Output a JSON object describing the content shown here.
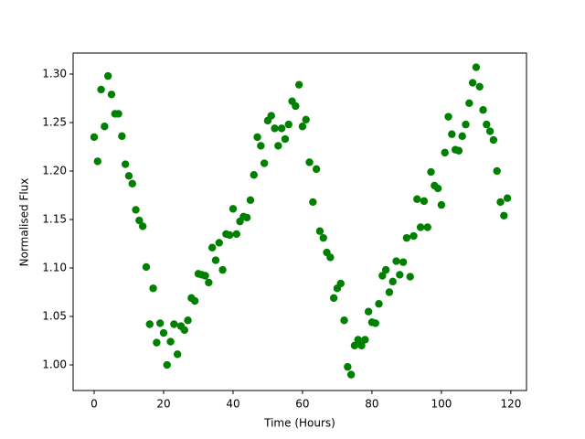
{
  "chart_data": {
    "type": "scatter",
    "xlabel": "Time (Hours)",
    "ylabel": "Normalised Flux",
    "color": "#008000",
    "x": [
      0,
      1,
      2,
      3,
      4,
      5,
      6,
      7,
      8,
      9,
      10,
      11,
      12,
      13,
      14,
      15,
      16,
      17,
      18,
      19,
      20,
      21,
      22,
      23,
      24,
      25,
      26,
      27,
      28,
      29,
      30,
      31,
      32,
      33,
      34,
      35,
      36,
      37,
      38,
      39,
      40,
      41,
      42,
      43,
      44,
      45,
      46,
      47,
      48,
      49,
      50,
      51,
      52,
      53,
      54,
      55,
      56,
      57,
      58,
      59,
      60,
      61,
      62,
      63,
      64,
      65,
      66,
      67,
      68,
      69,
      70,
      71,
      72,
      73,
      74,
      75,
      76,
      77,
      78,
      79,
      80,
      81,
      82,
      83,
      84,
      85,
      86,
      87,
      88,
      89,
      90,
      91,
      92,
      93,
      94,
      95,
      96,
      97,
      98,
      99,
      100,
      101,
      102,
      103,
      104,
      105,
      106,
      107,
      108,
      109,
      110,
      111,
      112,
      113,
      114,
      115,
      116,
      117,
      118,
      119
    ],
    "values": [
      1.235,
      1.21,
      1.284,
      1.246,
      1.298,
      1.279,
      1.259,
      1.259,
      1.236,
      1.207,
      1.195,
      1.187,
      1.16,
      1.149,
      1.143,
      1.101,
      1.042,
      1.079,
      1.023,
      1.043,
      1.033,
      1.0,
      1.024,
      1.042,
      1.011,
      1.04,
      1.036,
      1.046,
      1.069,
      1.066,
      1.094,
      1.093,
      1.092,
      1.085,
      1.121,
      1.108,
      1.126,
      1.098,
      1.135,
      1.134,
      1.161,
      1.135,
      1.148,
      1.153,
      1.152,
      1.17,
      1.196,
      1.235,
      1.226,
      1.208,
      1.252,
      1.257,
      1.244,
      1.226,
      1.244,
      1.233,
      1.248,
      1.272,
      1.267,
      1.289,
      1.246,
      1.253,
      1.209,
      1.168,
      1.202,
      1.138,
      1.131,
      1.116,
      1.111,
      1.069,
      1.079,
      1.084,
      1.046,
      0.998,
      0.99,
      1.02,
      1.026,
      1.02,
      1.026,
      1.055,
      1.044,
      1.043,
      1.063,
      1.092,
      1.098,
      1.075,
      1.086,
      1.107,
      1.093,
      1.106,
      1.131,
      1.091,
      1.133,
      1.171,
      1.142,
      1.169,
      1.142,
      1.199,
      1.185,
      1.182,
      1.165,
      1.219,
      1.256,
      1.238,
      1.222,
      1.221,
      1.236,
      1.248,
      1.27,
      1.291,
      1.307,
      1.287,
      1.263,
      1.248,
      1.241,
      1.232,
      1.2,
      1.168,
      1.154,
      1.172
    ],
    "xlim": [
      -6.05,
      124.5
    ],
    "ylim": [
      0.9736,
      1.3217
    ],
    "xticks": [
      0,
      20,
      40,
      60,
      80,
      100,
      120
    ],
    "yticks": [
      {
        "value": 1.0,
        "label": "1.00"
      },
      1.05,
      {
        "value": 1.1,
        "label": "1.10"
      },
      1.15,
      {
        "value": 1.2,
        "label": "1.20"
      },
      1.25,
      {
        "value": 1.3,
        "label": "1.30"
      }
    ]
  }
}
